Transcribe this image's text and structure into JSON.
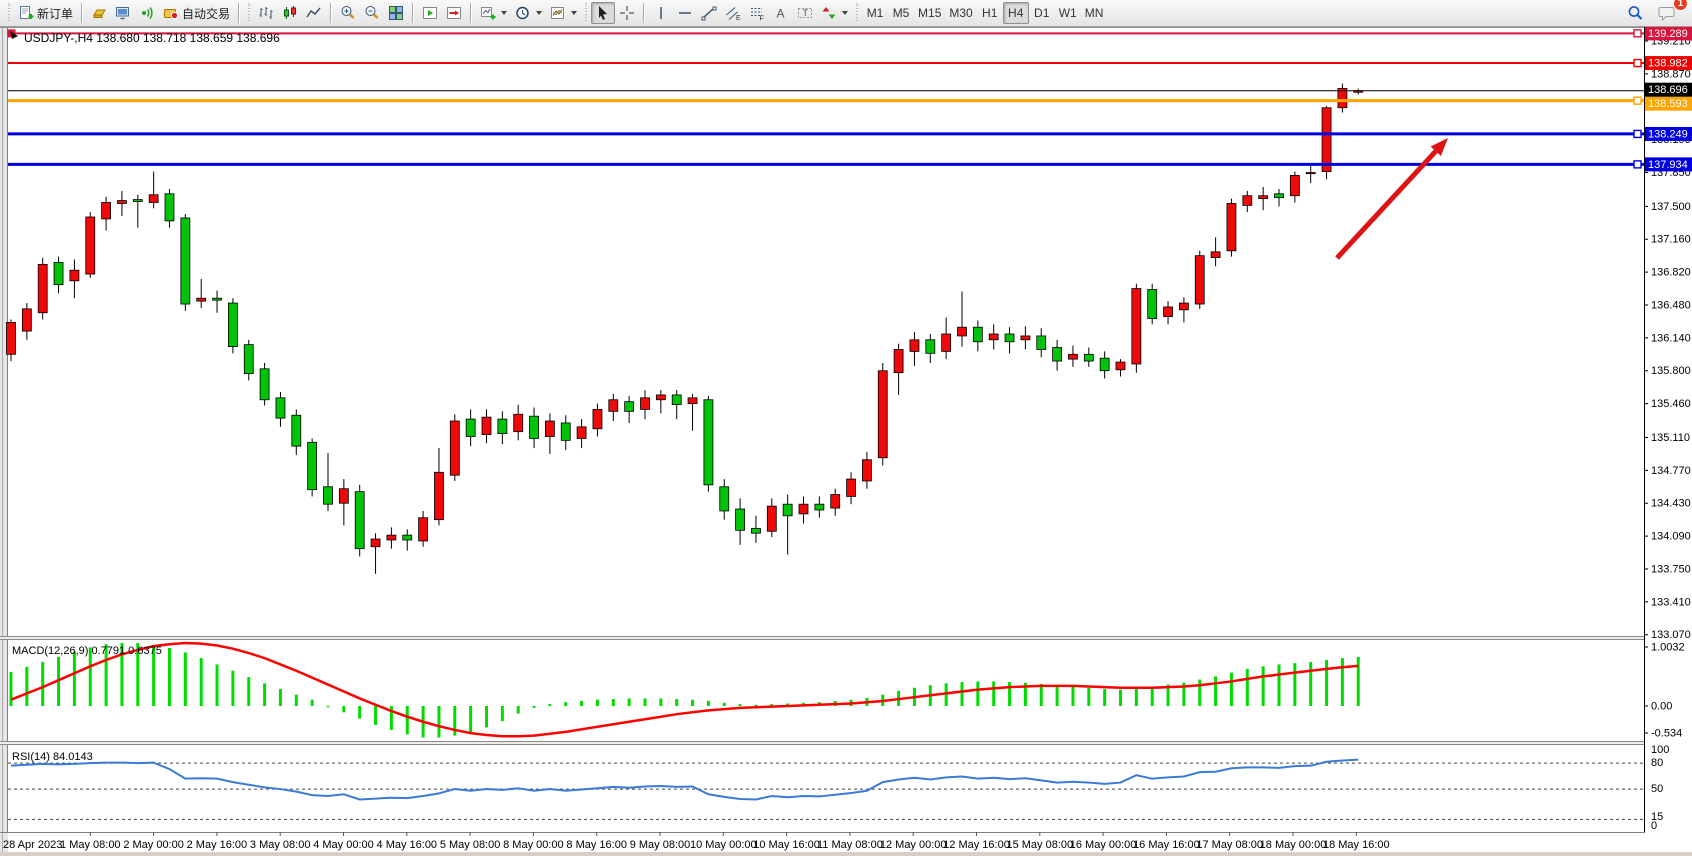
{
  "toolbar": {
    "new_order_label": "新订单",
    "autotrade_label": "自动交易",
    "timeframes": [
      "M1",
      "M5",
      "M15",
      "M30",
      "H1",
      "H4",
      "D1",
      "W1",
      "MN"
    ],
    "active_timeframe": "H4",
    "notification_count": "1"
  },
  "chart": {
    "title": "USDJPY-,H4  138.680 138.718 138.659 138.696",
    "symbol": "USDJPY-",
    "period": "H4"
  },
  "colors": {
    "bull": "#EE0A0A",
    "bear": "#00C30A",
    "wick": "#000000",
    "macd_histogram": "#00DC00",
    "macd_signal": "#FF0000",
    "rsi_line": "#3A7BD5",
    "bid_line": "#000000",
    "axis_text": "#000000",
    "arrow": "#DC1414",
    "chart_bg": "#FFFFFF"
  },
  "chart_data": {
    "type": "candlestick",
    "symbol": "USDJPY-",
    "timeframe": "H4",
    "ohlc_current": {
      "open": 138.68,
      "high": 138.718,
      "low": 138.659,
      "close": 138.696
    },
    "ylim": [
      133.07,
      139.289
    ],
    "price_axis_ticks": [
      "139.210",
      "138.870",
      "138.530",
      "138.190",
      "137.850",
      "137.500",
      "137.160",
      "136.820",
      "136.480",
      "136.140",
      "135.800",
      "135.460",
      "135.110",
      "134.770",
      "134.430",
      "134.090",
      "133.750",
      "133.410",
      "133.070"
    ],
    "time_axis_labels": [
      "28 Apr 2023",
      "1 May 08:00",
      "2 May 00:00",
      "2 May 16:00",
      "3 May 08:00",
      "4 May 00:00",
      "4 May 16:00",
      "5 May 08:00",
      "8 May 00:00",
      "8 May 16:00",
      "9 May 08:00",
      "10 May 00:00",
      "10 May 16:00",
      "11 May 08:00",
      "12 May 00:00",
      "12 May 16:00",
      "15 May 08:00",
      "16 May 00:00",
      "16 May 16:00",
      "17 May 08:00",
      "18 May 00:00",
      "18 May 16:00"
    ],
    "candles": [
      [
        135.97,
        136.33,
        135.9,
        136.3
      ],
      [
        136.21,
        136.5,
        136.12,
        136.44
      ],
      [
        136.4,
        136.97,
        136.33,
        136.9
      ],
      [
        136.92,
        136.98,
        136.6,
        136.69
      ],
      [
        136.73,
        136.95,
        136.55,
        136.84
      ],
      [
        136.8,
        137.44,
        136.76,
        137.39
      ],
      [
        137.37,
        137.6,
        137.25,
        137.54
      ],
      [
        137.53,
        137.66,
        137.4,
        137.56
      ],
      [
        137.57,
        137.62,
        137.28,
        137.55
      ],
      [
        137.54,
        137.86,
        137.48,
        137.62
      ],
      [
        137.63,
        137.68,
        137.28,
        137.35
      ],
      [
        137.38,
        137.42,
        136.42,
        136.49
      ],
      [
        136.52,
        136.75,
        136.45,
        136.55
      ],
      [
        136.55,
        136.63,
        136.4,
        136.53
      ],
      [
        136.5,
        136.55,
        135.98,
        136.05
      ],
      [
        136.07,
        136.12,
        135.7,
        135.77
      ],
      [
        135.82,
        135.88,
        135.44,
        135.5
      ],
      [
        135.52,
        135.58,
        135.22,
        135.31
      ],
      [
        135.34,
        135.4,
        134.93,
        135.02
      ],
      [
        135.06,
        135.1,
        134.5,
        134.57
      ],
      [
        134.6,
        134.95,
        134.35,
        134.42
      ],
      [
        134.43,
        134.68,
        134.2,
        134.58
      ],
      [
        134.55,
        134.62,
        133.88,
        133.96
      ],
      [
        133.98,
        134.12,
        133.7,
        134.06
      ],
      [
        134.05,
        134.18,
        133.96,
        134.1
      ],
      [
        134.1,
        134.16,
        133.94,
        134.05
      ],
      [
        134.04,
        134.35,
        133.98,
        134.28
      ],
      [
        134.26,
        135.0,
        134.2,
        134.75
      ],
      [
        134.72,
        135.35,
        134.66,
        135.28
      ],
      [
        135.3,
        135.4,
        135.02,
        135.12
      ],
      [
        135.14,
        135.4,
        135.05,
        135.32
      ],
      [
        135.3,
        135.38,
        135.04,
        135.15
      ],
      [
        135.17,
        135.45,
        135.08,
        135.35
      ],
      [
        135.33,
        135.42,
        135.0,
        135.1
      ],
      [
        135.12,
        135.36,
        134.94,
        135.28
      ],
      [
        135.26,
        135.34,
        134.98,
        135.08
      ],
      [
        135.1,
        135.3,
        135.0,
        135.22
      ],
      [
        135.2,
        135.46,
        135.12,
        135.4
      ],
      [
        135.38,
        135.56,
        135.28,
        135.5
      ],
      [
        135.48,
        135.54,
        135.26,
        135.38
      ],
      [
        135.4,
        135.6,
        135.3,
        135.52
      ],
      [
        135.5,
        135.6,
        135.36,
        135.55
      ],
      [
        135.55,
        135.6,
        135.3,
        135.45
      ],
      [
        135.46,
        135.56,
        135.18,
        135.52
      ],
      [
        135.5,
        135.54,
        134.55,
        134.62
      ],
      [
        134.6,
        134.68,
        134.26,
        134.35
      ],
      [
        134.37,
        134.48,
        134.0,
        134.15
      ],
      [
        134.17,
        134.3,
        134.02,
        134.12
      ],
      [
        134.14,
        134.48,
        134.08,
        134.4
      ],
      [
        134.42,
        134.52,
        133.9,
        134.3
      ],
      [
        134.32,
        134.5,
        134.22,
        134.42
      ],
      [
        134.42,
        134.5,
        134.28,
        134.36
      ],
      [
        134.38,
        134.58,
        134.3,
        134.52
      ],
      [
        134.5,
        134.75,
        134.42,
        134.68
      ],
      [
        134.66,
        134.96,
        134.58,
        134.88
      ],
      [
        134.9,
        135.88,
        134.82,
        135.8
      ],
      [
        135.78,
        136.08,
        135.55,
        136.02
      ],
      [
        136.0,
        136.2,
        135.85,
        136.12
      ],
      [
        136.12,
        136.18,
        135.88,
        135.98
      ],
      [
        136.0,
        136.35,
        135.92,
        136.18
      ],
      [
        136.16,
        136.62,
        136.05,
        136.25
      ],
      [
        136.25,
        136.32,
        136.0,
        136.1
      ],
      [
        136.12,
        136.28,
        136.02,
        136.18
      ],
      [
        136.18,
        136.25,
        135.98,
        136.1
      ],
      [
        136.12,
        136.26,
        136.02,
        136.16
      ],
      [
        136.16,
        136.24,
        135.94,
        136.02
      ],
      [
        136.04,
        136.12,
        135.8,
        135.9
      ],
      [
        135.92,
        136.06,
        135.84,
        135.97
      ],
      [
        135.97,
        136.04,
        135.84,
        135.9
      ],
      [
        135.93,
        136.0,
        135.72,
        135.8
      ],
      [
        135.81,
        135.92,
        135.74,
        135.89
      ],
      [
        135.87,
        136.7,
        135.78,
        136.65
      ],
      [
        136.64,
        136.7,
        136.28,
        136.34
      ],
      [
        136.36,
        136.52,
        136.28,
        136.46
      ],
      [
        136.43,
        136.56,
        136.3,
        136.5
      ],
      [
        136.49,
        137.04,
        136.44,
        136.99
      ],
      [
        136.97,
        137.18,
        136.88,
        137.03
      ],
      [
        137.04,
        137.58,
        136.98,
        137.53
      ],
      [
        137.51,
        137.66,
        137.44,
        137.61
      ],
      [
        137.58,
        137.7,
        137.46,
        137.61
      ],
      [
        137.63,
        137.68,
        137.5,
        137.59
      ],
      [
        137.61,
        137.86,
        137.54,
        137.82
      ],
      [
        137.84,
        137.94,
        137.74,
        137.85
      ],
      [
        137.86,
        138.54,
        137.78,
        138.52
      ],
      [
        138.52,
        138.77,
        138.47,
        138.72
      ],
      [
        138.68,
        138.718,
        138.659,
        138.696
      ]
    ],
    "hlines": [
      {
        "price": 139.289,
        "label": "139.289",
        "color": "#D8143C",
        "width": 2,
        "label_dy": 0
      },
      {
        "price": 138.982,
        "label": "138.982",
        "color": "#F00000",
        "width": 2,
        "label_dy": 0
      },
      {
        "price": 138.593,
        "label": "138.593",
        "color": "#FFA500",
        "width": 3,
        "label_dy": 3
      },
      {
        "price": 138.249,
        "label": "138.249",
        "color": "#0000E0",
        "width": 3,
        "label_dy": 0
      },
      {
        "price": 137.934,
        "label": "137.934",
        "color": "#0000E0",
        "width": 3,
        "label_dy": 0
      }
    ],
    "bid_price": 138.696,
    "bid_label": "138.696",
    "macd": {
      "label": "MACD(12,26,9) 0.7791 0.6375",
      "value": 0.7791,
      "signal_value": 0.6375,
      "scale_ticks": [
        "1.0032",
        "0.00",
        "-0.534"
      ],
      "histogram": [
        0.54,
        0.62,
        0.7,
        0.78,
        0.86,
        0.93,
        0.98,
        1.0,
        1.0,
        0.97,
        0.92,
        0.85,
        0.76,
        0.66,
        0.56,
        0.46,
        0.36,
        0.27,
        0.18,
        0.1,
        -0.02,
        -0.1,
        -0.2,
        -0.3,
        -0.38,
        -0.45,
        -0.5,
        -0.5,
        -0.47,
        -0.42,
        -0.34,
        -0.24,
        -0.12,
        -0.03,
        0.03,
        0.06,
        0.08,
        0.1,
        0.11,
        0.12,
        0.12,
        0.12,
        0.11,
        0.1,
        0.08,
        0.05,
        0.03,
        0.02,
        0.03,
        0.04,
        0.05,
        0.06,
        0.08,
        0.1,
        0.13,
        0.18,
        0.24,
        0.29,
        0.33,
        0.36,
        0.38,
        0.39,
        0.39,
        0.38,
        0.37,
        0.35,
        0.33,
        0.31,
        0.29,
        0.27,
        0.26,
        0.28,
        0.31,
        0.34,
        0.37,
        0.42,
        0.47,
        0.53,
        0.59,
        0.63,
        0.66,
        0.68,
        0.7,
        0.73,
        0.76,
        0.7791
      ],
      "signal": [
        0.1,
        0.2,
        0.3,
        0.41,
        0.52,
        0.63,
        0.73,
        0.82,
        0.89,
        0.95,
        0.98,
        1.0,
        0.99,
        0.96,
        0.91,
        0.84,
        0.76,
        0.66,
        0.56,
        0.45,
        0.34,
        0.23,
        0.12,
        0.02,
        -0.08,
        -0.17,
        -0.25,
        -0.32,
        -0.38,
        -0.43,
        -0.46,
        -0.48,
        -0.48,
        -0.47,
        -0.44,
        -0.41,
        -0.37,
        -0.33,
        -0.29,
        -0.25,
        -0.21,
        -0.17,
        -0.13,
        -0.1,
        -0.07,
        -0.05,
        -0.03,
        -0.02,
        -0.01,
        0.0,
        0.01,
        0.02,
        0.03,
        0.04,
        0.06,
        0.08,
        0.11,
        0.14,
        0.17,
        0.2,
        0.23,
        0.26,
        0.28,
        0.3,
        0.31,
        0.32,
        0.32,
        0.32,
        0.31,
        0.3,
        0.29,
        0.29,
        0.29,
        0.3,
        0.31,
        0.33,
        0.36,
        0.39,
        0.43,
        0.47,
        0.5,
        0.53,
        0.56,
        0.59,
        0.615,
        0.6375
      ]
    },
    "rsi": {
      "label": "RSI(14) 84.0143",
      "value": 84.0143,
      "scale_ticks": [
        "100",
        "80",
        "50",
        "15",
        "0"
      ],
      "levels": [
        80,
        50,
        15
      ],
      "values": [
        77,
        78,
        79,
        78.5,
        79,
        80,
        80.5,
        80.5,
        80,
        80.5,
        73,
        62,
        62.5,
        62,
        58,
        55,
        52,
        50,
        47,
        43,
        42,
        44,
        38,
        39,
        40,
        39.5,
        42,
        45,
        50,
        48,
        50,
        49,
        51,
        48,
        50,
        48,
        49.5,
        51,
        52.5,
        51.5,
        53,
        53.5,
        52.5,
        53,
        44,
        41,
        38.5,
        38,
        42,
        40.5,
        42,
        41.5,
        43.5,
        45.5,
        48,
        58,
        61,
        63,
        61,
        63.5,
        64.5,
        62,
        63,
        61.5,
        62.5,
        60,
        57.5,
        58.5,
        57.5,
        56,
        57.5,
        66,
        62,
        63.5,
        64.5,
        69.5,
        70,
        74,
        75,
        75,
        74.5,
        76.5,
        77,
        81.5,
        83,
        84.0143
      ]
    },
    "annotation_arrow": {
      "from": [
        1337,
        258
      ],
      "to": [
        1448,
        138
      ],
      "color": "#DC1414"
    }
  }
}
